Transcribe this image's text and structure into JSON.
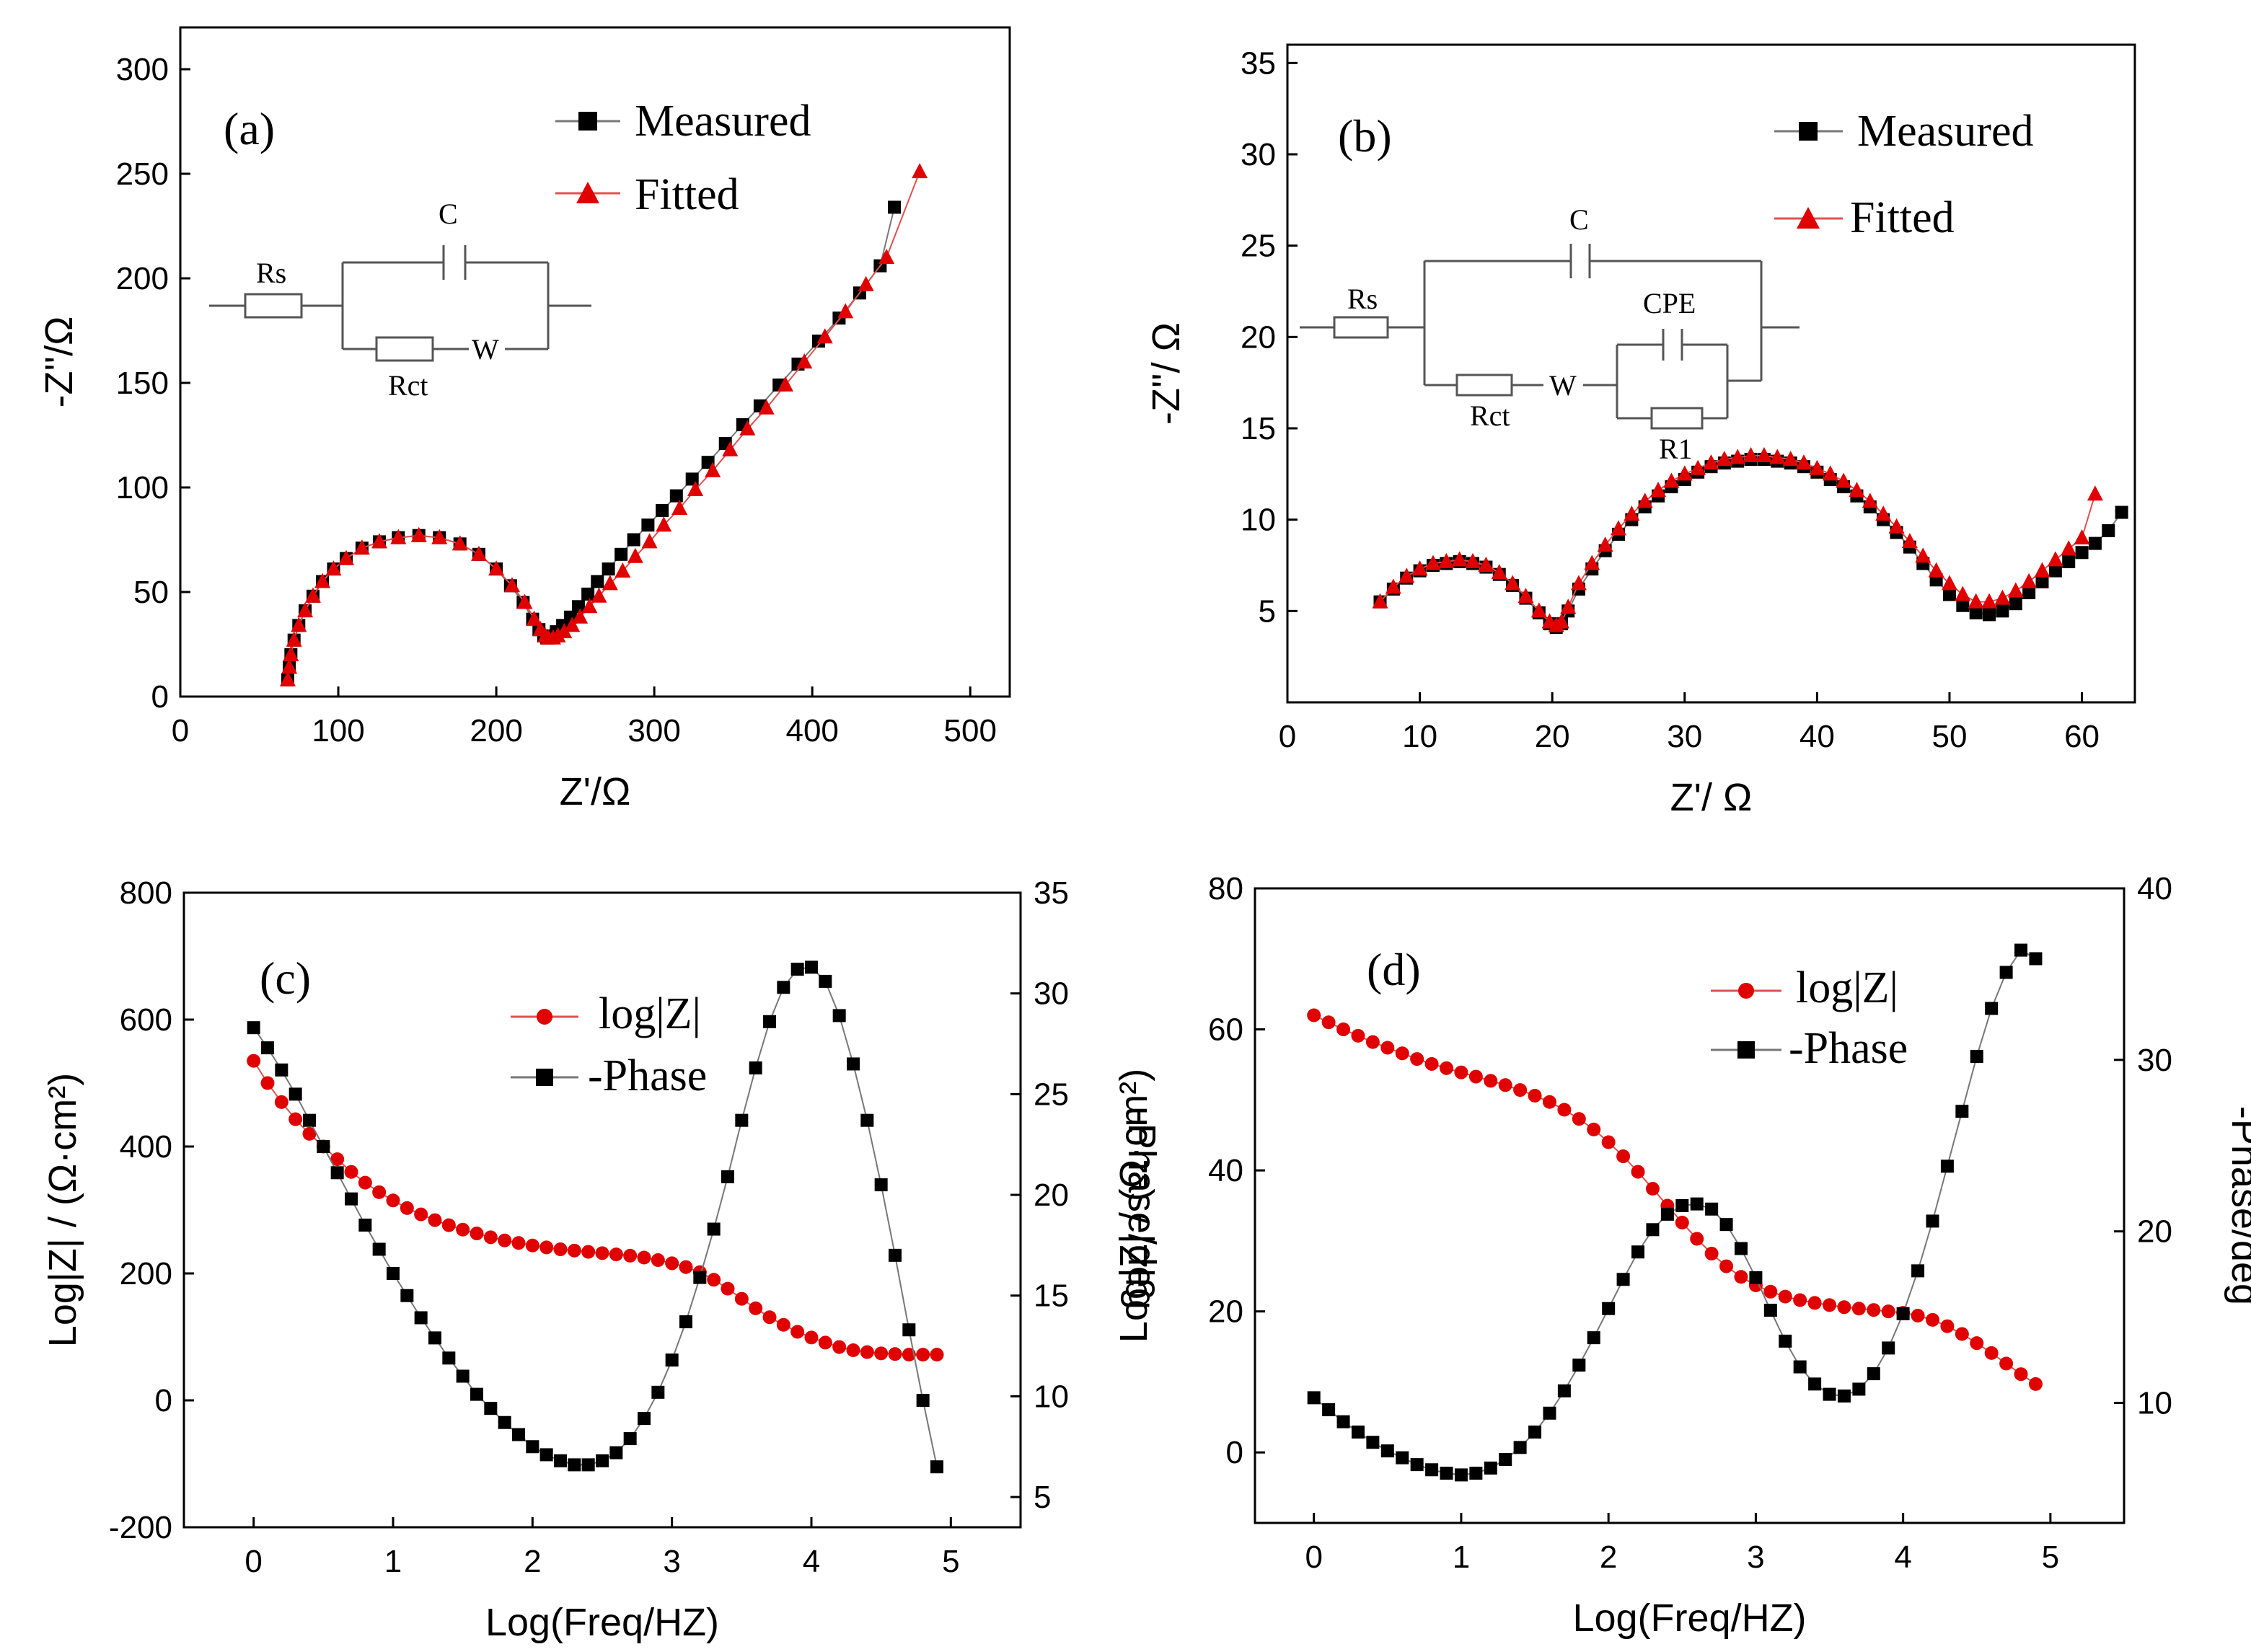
{
  "chart_data": [
    {
      "type": "scatter",
      "panel": "(a)",
      "xlabel": "Z'/Ω",
      "ylabel": "-Z''/Ω",
      "xlim": [
        0,
        525
      ],
      "ylim": [
        0,
        320
      ],
      "xticks": [
        0,
        100,
        200,
        300,
        400,
        500
      ],
      "yticks": [
        0,
        50,
        100,
        150,
        200,
        250,
        300
      ],
      "series": [
        {
          "name": "Measured",
          "marker": "square",
          "color": "#000000",
          "x": [
            68,
            69,
            70,
            72,
            75,
            79,
            84,
            90,
            97,
            105,
            115,
            126,
            138,
            151,
            164,
            177,
            189,
            200,
            209,
            217,
            223,
            227,
            230,
            232,
            235,
            238,
            242,
            247,
            252,
            258,
            264,
            271,
            279,
            287,
            296,
            305,
            314,
            324,
            334,
            345,
            356,
            367,
            379,
            391,
            404,
            417,
            430,
            443,
            452
          ],
          "y": [
            8,
            14,
            20,
            27,
            34,
            41,
            48,
            55,
            61,
            66,
            71,
            74,
            76,
            77,
            76,
            73,
            68,
            61,
            53,
            45,
            37,
            32,
            29,
            28,
            29,
            31,
            34,
            38,
            43,
            49,
            55,
            61,
            68,
            75,
            82,
            89,
            96,
            104,
            112,
            121,
            130,
            139,
            149,
            159,
            170,
            181,
            193,
            206,
            234
          ]
        },
        {
          "name": "Fitted",
          "marker": "triangle",
          "color": "#e00000",
          "x": [
            68,
            69,
            70,
            72,
            75,
            79,
            84,
            90,
            97,
            105,
            115,
            126,
            138,
            151,
            164,
            177,
            189,
            200,
            210,
            218,
            224,
            228,
            231,
            233,
            236,
            239,
            243,
            248,
            253,
            259,
            265,
            272,
            280,
            288,
            297,
            306,
            316,
            326,
            337,
            348,
            359,
            371,
            383,
            395,
            408,
            421,
            434,
            447,
            468
          ],
          "y": [
            8,
            14,
            20,
            27,
            34,
            41,
            48,
            55,
            61,
            66,
            71,
            74,
            76,
            77,
            76,
            73,
            68,
            61,
            53,
            45,
            37,
            32,
            29,
            28,
            28,
            29,
            31,
            34,
            38,
            43,
            48,
            54,
            60,
            67,
            74,
            82,
            90,
            99,
            108,
            118,
            128,
            138,
            149,
            160,
            172,
            184,
            197,
            210,
            251
          ]
        }
      ],
      "circuit": {
        "labels": [
          "Rs",
          "C",
          "Rct",
          "W"
        ]
      }
    },
    {
      "type": "scatter",
      "panel": "(b)",
      "xlabel": "Z'/ Ω",
      "ylabel": "-Z''/ Ω",
      "xlim": [
        0,
        64
      ],
      "ylim": [
        0,
        36
      ],
      "xticks": [
        0,
        10,
        20,
        30,
        40,
        50,
        60
      ],
      "yticks": [
        5,
        10,
        15,
        20,
        25,
        30,
        35
      ],
      "series": [
        {
          "name": "Measured",
          "marker": "square",
          "color": "#000000",
          "x": [
            7,
            8,
            9,
            10,
            11,
            12,
            13,
            14,
            15,
            16,
            17,
            18,
            19,
            19.8,
            20.3,
            20.7,
            21.2,
            22,
            23,
            24,
            25,
            26,
            27,
            28,
            29,
            30,
            31,
            32,
            33,
            34,
            35,
            36,
            37,
            38,
            39,
            40,
            41,
            42,
            43,
            44,
            45,
            46,
            47,
            48,
            49,
            50,
            51,
            52,
            53,
            54,
            55,
            56,
            57,
            58,
            59,
            60,
            61,
            62,
            63
          ],
          "y": [
            5.5,
            6.2,
            6.8,
            7.2,
            7.5,
            7.6,
            7.7,
            7.6,
            7.4,
            7.0,
            6.4,
            5.7,
            4.9,
            4.3,
            4.1,
            4.3,
            5.0,
            6.2,
            7.3,
            8.3,
            9.2,
            10.0,
            10.7,
            11.3,
            11.8,
            12.2,
            12.6,
            12.9,
            13.1,
            13.2,
            13.3,
            13.3,
            13.2,
            13.1,
            12.9,
            12.6,
            12.2,
            11.8,
            11.3,
            10.7,
            10.0,
            9.3,
            8.5,
            7.6,
            6.7,
            5.9,
            5.3,
            4.9,
            4.8,
            5.0,
            5.4,
            6.0,
            6.6,
            7.2,
            7.7,
            8.2,
            8.7,
            9.4,
            10.4
          ]
        },
        {
          "name": "Fitted",
          "marker": "triangle",
          "color": "#e00000",
          "x": [
            7,
            8,
            9,
            10,
            11,
            12,
            13,
            14,
            15,
            16,
            17,
            18,
            19,
            19.8,
            20.3,
            20.7,
            21.2,
            22,
            23,
            24,
            25,
            26,
            27,
            28,
            29,
            30,
            31,
            32,
            33,
            34,
            35,
            36,
            37,
            38,
            39,
            40,
            41,
            42,
            43,
            44,
            45,
            46,
            47,
            48,
            49,
            50,
            51,
            52,
            53,
            54,
            55,
            56,
            57,
            58,
            59,
            60,
            61
          ],
          "y": [
            5.5,
            6.3,
            6.9,
            7.3,
            7.6,
            7.7,
            7.8,
            7.7,
            7.5,
            7.1,
            6.5,
            5.8,
            5.0,
            4.4,
            4.2,
            4.4,
            5.2,
            6.5,
            7.6,
            8.6,
            9.5,
            10.3,
            11.0,
            11.6,
            12.1,
            12.5,
            12.8,
            13.1,
            13.3,
            13.4,
            13.5,
            13.5,
            13.4,
            13.3,
            13.1,
            12.8,
            12.5,
            12.1,
            11.6,
            11.0,
            10.3,
            9.6,
            8.8,
            8.0,
            7.2,
            6.5,
            5.9,
            5.5,
            5.5,
            5.7,
            6.1,
            6.6,
            7.2,
            7.8,
            8.4,
            9.0,
            11.4
          ]
        }
      ],
      "circuit": {
        "labels": [
          "Rs",
          "C",
          "CPE",
          "Rct",
          "W",
          "R1"
        ]
      }
    },
    {
      "type": "scatter",
      "panel": "(c)",
      "xlabel": "Log(Freq/HZ)",
      "ylabel": "Log|Z| / (Ω·cm²)",
      "y2label": "-Phase/deg",
      "xlim": [
        -0.5,
        5.5
      ],
      "ylim": [
        -200,
        800
      ],
      "y2lim": [
        3.5,
        35
      ],
      "xticks": [
        0,
        1,
        2,
        3,
        4,
        5
      ],
      "yticks": [
        -200,
        0,
        200,
        400,
        600,
        800
      ],
      "y2ticks": [
        5,
        10,
        15,
        20,
        25,
        30,
        35
      ],
      "series": [
        {
          "name": "log|Z|",
          "marker": "circle",
          "color": "#e00000",
          "axis": "left",
          "x": [
            0,
            0.1,
            0.2,
            0.3,
            0.4,
            0.5,
            0.6,
            0.7,
            0.8,
            0.9,
            1.0,
            1.1,
            1.2,
            1.3,
            1.4,
            1.5,
            1.6,
            1.7,
            1.8,
            1.9,
            2.0,
            2.1,
            2.2,
            2.3,
            2.4,
            2.5,
            2.6,
            2.7,
            2.8,
            2.9,
            3.0,
            3.1,
            3.2,
            3.3,
            3.4,
            3.5,
            3.6,
            3.7,
            3.8,
            3.9,
            4.0,
            4.1,
            4.2,
            4.3,
            4.4,
            4.5,
            4.6,
            4.7,
            4.8,
            4.9
          ],
          "y": [
            535,
            500,
            470,
            443,
            420,
            400,
            380,
            360,
            343,
            328,
            315,
            303,
            293,
            284,
            276,
            269,
            263,
            257,
            252,
            248,
            244,
            241,
            238,
            236,
            234,
            232,
            230,
            228,
            225,
            221,
            216,
            210,
            202,
            190,
            176,
            160,
            145,
            131,
            119,
            108,
            99,
            91,
            84,
            79,
            76,
            74,
            73,
            72,
            72,
            72
          ]
        },
        {
          "name": "-Phase",
          "marker": "square",
          "color": "#000000",
          "axis": "right",
          "x": [
            0,
            0.1,
            0.2,
            0.3,
            0.4,
            0.5,
            0.6,
            0.7,
            0.8,
            0.9,
            1.0,
            1.1,
            1.2,
            1.3,
            1.4,
            1.5,
            1.6,
            1.7,
            1.8,
            1.9,
            2.0,
            2.1,
            2.2,
            2.3,
            2.4,
            2.5,
            2.6,
            2.7,
            2.8,
            2.9,
            3.0,
            3.1,
            3.2,
            3.3,
            3.4,
            3.5,
            3.6,
            3.7,
            3.8,
            3.9,
            4.0,
            4.1,
            4.2,
            4.3,
            4.4,
            4.5,
            4.6,
            4.7,
            4.8,
            4.9
          ],
          "y": [
            28.3,
            27.3,
            26.2,
            25.0,
            23.7,
            22.4,
            21.1,
            19.8,
            18.5,
            17.3,
            16.1,
            15.0,
            13.9,
            12.9,
            11.9,
            11.0,
            10.1,
            9.4,
            8.7,
            8.1,
            7.5,
            7.1,
            6.8,
            6.6,
            6.6,
            6.8,
            7.2,
            7.9,
            8.9,
            10.2,
            11.8,
            13.7,
            15.9,
            18.3,
            20.9,
            23.7,
            26.3,
            28.6,
            30.3,
            31.2,
            31.3,
            30.6,
            28.9,
            26.5,
            23.7,
            20.5,
            17.0,
            13.3,
            9.8,
            6.5
          ]
        }
      ]
    },
    {
      "type": "scatter",
      "panel": "(d)",
      "xlabel": "Log(Freq/HZ)",
      "ylabel": "Log|Z| / (Ω·cm²)",
      "y2label": "-Phase/deg",
      "xlim": [
        -0.4,
        5.5
      ],
      "ylim": [
        -10,
        80
      ],
      "y2lim": [
        3,
        40
      ],
      "xticks": [
        0,
        1,
        2,
        3,
        4,
        5
      ],
      "yticks": [
        0,
        20,
        40,
        60,
        80
      ],
      "y2ticks": [
        10,
        20,
        30,
        40
      ],
      "series": [
        {
          "name": "log|Z|",
          "marker": "circle",
          "color": "#e00000",
          "axis": "left",
          "x": [
            0,
            0.1,
            0.2,
            0.3,
            0.4,
            0.5,
            0.6,
            0.7,
            0.8,
            0.9,
            1.0,
            1.1,
            1.2,
            1.3,
            1.4,
            1.5,
            1.6,
            1.7,
            1.8,
            1.9,
            2.0,
            2.1,
            2.2,
            2.3,
            2.4,
            2.5,
            2.6,
            2.7,
            2.8,
            2.9,
            3.0,
            3.1,
            3.2,
            3.3,
            3.4,
            3.5,
            3.6,
            3.7,
            3.8,
            3.9,
            4.0,
            4.1,
            4.2,
            4.3,
            4.4,
            4.5,
            4.6,
            4.7,
            4.8,
            4.9
          ],
          "y": [
            62.0,
            61.0,
            60.0,
            59.1,
            58.2,
            57.4,
            56.6,
            55.8,
            55.1,
            54.5,
            53.9,
            53.3,
            52.7,
            52.1,
            51.4,
            50.6,
            49.7,
            48.6,
            47.3,
            45.8,
            44.0,
            42.0,
            39.8,
            37.4,
            35.0,
            32.6,
            30.3,
            28.2,
            26.4,
            24.9,
            23.7,
            22.8,
            22.1,
            21.6,
            21.2,
            20.9,
            20.6,
            20.4,
            20.2,
            20.0,
            19.8,
            19.4,
            18.8,
            17.9,
            16.8,
            15.5,
            14.1,
            12.6,
            11.1,
            9.7
          ]
        },
        {
          "name": "-Phase",
          "marker": "square",
          "color": "#000000",
          "axis": "right",
          "x": [
            0,
            0.1,
            0.2,
            0.3,
            0.4,
            0.5,
            0.6,
            0.7,
            0.8,
            0.9,
            1.0,
            1.1,
            1.2,
            1.3,
            1.4,
            1.5,
            1.6,
            1.7,
            1.8,
            1.9,
            2.0,
            2.1,
            2.2,
            2.3,
            2.4,
            2.5,
            2.6,
            2.7,
            2.8,
            2.9,
            3.0,
            3.1,
            3.2,
            3.3,
            3.4,
            3.5,
            3.6,
            3.7,
            3.8,
            3.9,
            4.0,
            4.1,
            4.2,
            4.3,
            4.4,
            4.5,
            4.6,
            4.7,
            4.8,
            4.9
          ],
          "y": [
            10.3,
            9.6,
            8.9,
            8.3,
            7.7,
            7.2,
            6.8,
            6.4,
            6.1,
            5.9,
            5.8,
            5.9,
            6.2,
            6.7,
            7.4,
            8.3,
            9.4,
            10.7,
            12.2,
            13.8,
            15.5,
            17.2,
            18.8,
            20.1,
            21.0,
            21.5,
            21.6,
            21.3,
            20.4,
            19.0,
            17.3,
            15.4,
            13.6,
            12.1,
            11.1,
            10.5,
            10.4,
            10.8,
            11.7,
            13.2,
            15.2,
            17.7,
            20.6,
            23.8,
            27.0,
            30.2,
            33.0,
            35.1,
            36.4,
            35.9
          ]
        }
      ]
    }
  ]
}
